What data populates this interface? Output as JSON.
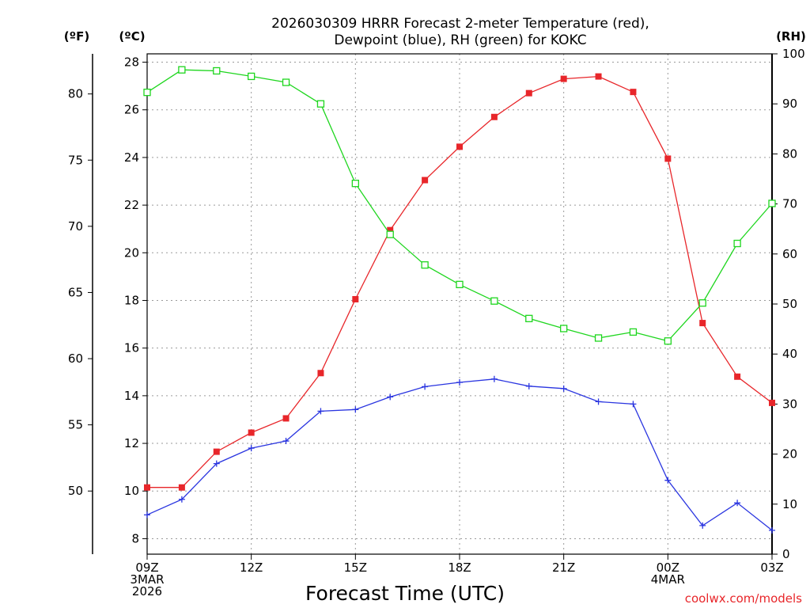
{
  "chart_data": {
    "type": "line",
    "title_lines": [
      "2026030309 HRRR Forecast 2-meter Temperature (red),",
      "Dewpoint (blue), RH (green) for KOKC"
    ],
    "xlabel": "Forecast Time (UTC)",
    "credit": "coolwx.com/models",
    "unit_labels": {
      "f": "(ºF)",
      "c": "(ºC)",
      "rh": "(RH)"
    },
    "x_hours": [
      0,
      1,
      2,
      3,
      4,
      5,
      6,
      7,
      8,
      9,
      10,
      11,
      12,
      13,
      14,
      15,
      16,
      17,
      18
    ],
    "xlim": [
      0,
      18
    ],
    "x_ticks": [
      {
        "hour": 0,
        "lines": [
          "09Z",
          "3MAR",
          "2026"
        ]
      },
      {
        "hour": 3,
        "lines": [
          "12Z"
        ]
      },
      {
        "hour": 6,
        "lines": [
          "15Z"
        ]
      },
      {
        "hour": 9,
        "lines": [
          "18Z"
        ]
      },
      {
        "hour": 12,
        "lines": [
          "21Z"
        ]
      },
      {
        "hour": 15,
        "lines": [
          "00Z",
          "4MAR"
        ]
      },
      {
        "hour": 18,
        "lines": [
          "03Z"
        ]
      }
    ],
    "celsius_axis": {
      "lim": [
        7.35,
        28.35
      ],
      "ticks": [
        8,
        10,
        12,
        14,
        16,
        18,
        20,
        22,
        24,
        26,
        28
      ]
    },
    "fahrenheit_axis": {
      "ticks": [
        50,
        55,
        60,
        65,
        70,
        75,
        80
      ]
    },
    "rh_axis": {
      "lim": [
        0,
        100
      ],
      "ticks": [
        0,
        10,
        20,
        30,
        40,
        50,
        60,
        70,
        80,
        90,
        100
      ]
    },
    "series": [
      {
        "name": "2-meter Temperature",
        "axis": "celsius",
        "color": "#e8262a",
        "marker": "filled-square",
        "values": [
          10.15,
          10.15,
          11.65,
          12.45,
          13.05,
          14.95,
          18.05,
          20.95,
          23.05,
          24.45,
          25.7,
          26.7,
          27.3,
          27.4,
          26.75,
          23.95,
          17.05,
          14.8,
          13.7
        ]
      },
      {
        "name": "Dewpoint",
        "axis": "celsius",
        "color": "#2a35e0",
        "marker": "plus",
        "values": [
          9.0,
          9.65,
          11.15,
          11.8,
          12.1,
          13.35,
          13.42,
          13.95,
          14.38,
          14.56,
          14.7,
          14.4,
          14.3,
          13.75,
          13.65,
          10.45,
          8.55,
          9.5,
          8.35
        ]
      },
      {
        "name": "RH",
        "axis": "rh",
        "color": "#1ed61e",
        "marker": "open-square",
        "values": [
          92.3,
          96.8,
          96.6,
          95.5,
          94.3,
          90.0,
          74.1,
          63.9,
          57.8,
          53.9,
          50.6,
          47.1,
          45.1,
          43.2,
          44.4,
          42.6,
          50.2,
          62.1,
          70.1
        ]
      }
    ]
  }
}
